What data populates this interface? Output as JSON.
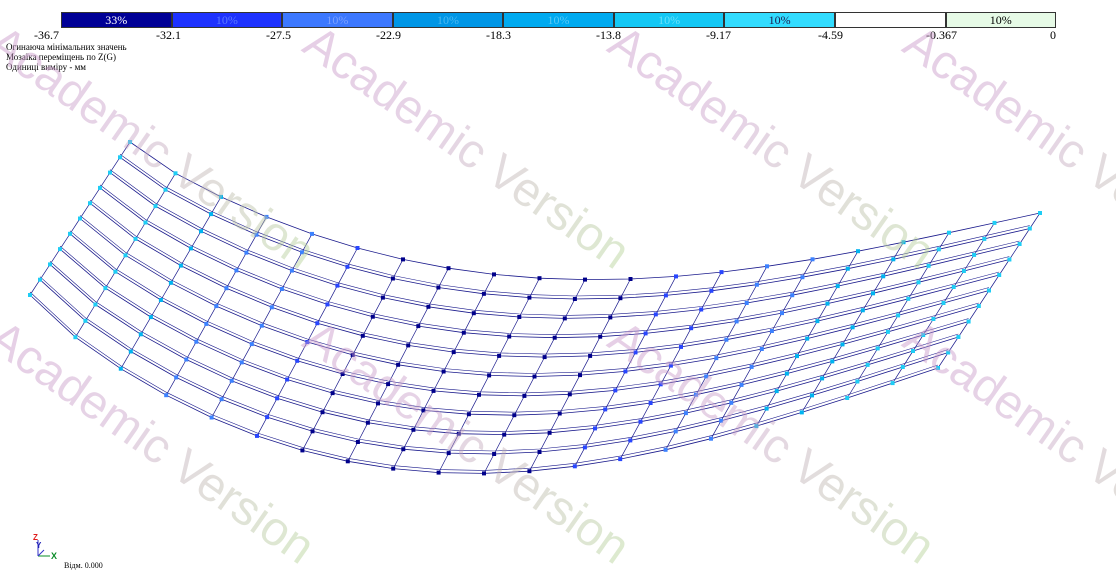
{
  "legend": {
    "segments": [
      {
        "label": "33%",
        "color": "#000096",
        "text_color": "#ffffff"
      },
      {
        "label": "10%",
        "color": "#1e32ff",
        "text_color": "#5a78ff"
      },
      {
        "label": "10%",
        "color": "#3c78ff",
        "text_color": "#7aa0ff"
      },
      {
        "label": "10%",
        "color": "#0096e6",
        "text_color": "#4ab8f0"
      },
      {
        "label": "10%",
        "color": "#00aaf0",
        "text_color": "#5ac8f5"
      },
      {
        "label": "10%",
        "color": "#14c8f5",
        "text_color": "#6ae0fa"
      },
      {
        "label": "10%",
        "color": "#32dcff",
        "text_color": "#1e1e50"
      },
      {
        "label": "",
        "color": "#ffffff",
        "text_color": "#000000"
      },
      {
        "label": "10%",
        "color": "#e6fae6",
        "text_color": "#000000"
      }
    ],
    "ticks": [
      "-36.7",
      "-32.1",
      "-27.5",
      "-22.9",
      "-18.3",
      "-13.8",
      "-9.17",
      "-4.59",
      "-0.367",
      "0"
    ]
  },
  "info": {
    "line1": "Огинаюча мінімальних значень",
    "line2": "Мозаїка переміщень по Z(G)",
    "line3": "Одиниці виміру - мм"
  },
  "watermark": {
    "text": "Academic Version"
  },
  "axes": {
    "z": "Z",
    "y": "Y",
    "x": "X"
  },
  "scale_text": "Відм. 0.000",
  "colors": {
    "mesh_line": "#1a1a8c",
    "mesh_top": "#000080",
    "node_dark": "#00008b",
    "node_blue": "#2846ff",
    "node_mid": "#3c82ff",
    "node_light": "#00b4f0",
    "node_cyan": "#1ecdf5"
  }
}
